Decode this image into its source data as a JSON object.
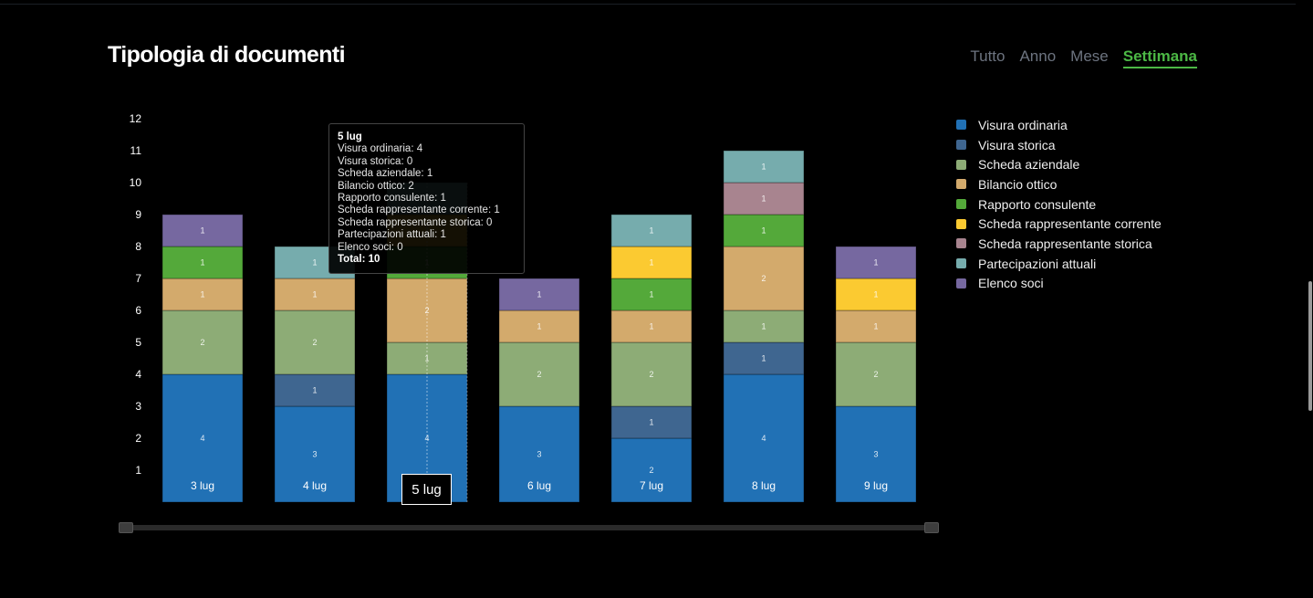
{
  "header": {
    "title": "Tipologia di documenti"
  },
  "periods": [
    {
      "label": "Tutto"
    },
    {
      "label": "Anno"
    },
    {
      "label": "Mese"
    },
    {
      "label": "Settimana"
    }
  ],
  "active_period": "Settimana",
  "colors": {
    "background": "#000000",
    "accent": "#4cb845"
  },
  "chart_data": {
    "type": "bar",
    "stacked": true,
    "categories": [
      "3 lug",
      "4 lug",
      "5 lug",
      "6 lug",
      "7 lug",
      "8 lug",
      "9 lug"
    ],
    "series": [
      {
        "name": "Visura ordinaria",
        "color": "#2171b5",
        "values": [
          4,
          3,
          4,
          3,
          2,
          4,
          3
        ]
      },
      {
        "name": "Visura storica",
        "color": "#3f6690",
        "values": [
          0,
          1,
          0,
          0,
          1,
          1,
          0
        ]
      },
      {
        "name": "Scheda aziendale",
        "color": "#8dac76",
        "values": [
          2,
          2,
          1,
          2,
          2,
          1,
          2
        ]
      },
      {
        "name": "Bilancio ottico",
        "color": "#d3aa6c",
        "values": [
          1,
          1,
          2,
          1,
          1,
          2,
          1
        ]
      },
      {
        "name": "Rapporto consulente",
        "color": "#54a93a",
        "values": [
          1,
          0,
          1,
          0,
          1,
          1,
          0
        ]
      },
      {
        "name": "Scheda rappresentante corrente",
        "color": "#fbca31",
        "values": [
          0,
          0,
          1,
          0,
          1,
          0,
          1
        ]
      },
      {
        "name": "Scheda rappresentante storica",
        "color": "#a8848f",
        "values": [
          0,
          0,
          0,
          0,
          0,
          1,
          0
        ]
      },
      {
        "name": "Partecipazioni attuali",
        "color": "#76acad",
        "values": [
          0,
          1,
          1,
          0,
          1,
          1,
          0
        ]
      },
      {
        "name": "Elenco soci",
        "color": "#7668a0",
        "values": [
          1,
          0,
          0,
          1,
          0,
          0,
          1
        ]
      }
    ],
    "y_ticks": [
      1,
      2,
      3,
      4,
      5,
      6,
      7,
      8,
      9,
      10,
      11,
      12
    ],
    "ylim": [
      0,
      12
    ],
    "legend_position": "right",
    "grid": false,
    "tooltip": {
      "category": "5 lug",
      "lines": [
        "Visura ordinaria: 4",
        "Visura storica: 0",
        "Scheda aziendale: 1",
        "Bilancio ottico: 2",
        "Rapporto consulente: 1",
        "Scheda rappresentante corrente: 1",
        "Scheda rappresentante storica: 0",
        "Partecipazioni attuali: 1",
        "Elenco soci: 0"
      ],
      "total": "Total: 10"
    },
    "highlighted_category": "5 lug"
  }
}
